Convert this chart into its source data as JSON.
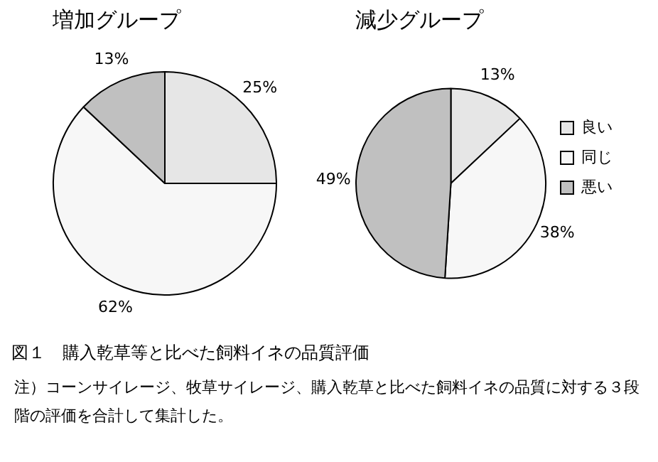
{
  "chart_data": [
    {
      "type": "pie",
      "title": "増加グループ",
      "categories": [
        null,
        null,
        null
      ],
      "values": [
        25,
        62,
        13
      ],
      "value_labels": [
        "25%",
        "62%",
        "13%"
      ],
      "colors": [
        "#e6e6e6",
        "#f7f7f7",
        "#c0c0c0"
      ],
      "legend": false,
      "annotations": [
        "図１　購入乾草等と比べた飼料イネの品質評価",
        "注）コーンサイレージ、牧草サイレージ、購入乾草と比べた飼料イネの品質に対する３段階の評価を合計して集計した。"
      ]
    },
    {
      "type": "pie",
      "title": "減少グループ",
      "categories": [
        "良い",
        "同じ",
        "悪い"
      ],
      "values": [
        13,
        38,
        49
      ],
      "value_labels": [
        "13%",
        "38%",
        "49%"
      ],
      "colors": [
        "#e6e6e6",
        "#f7f7f7",
        "#c0c0c0"
      ],
      "legend": "right"
    }
  ]
}
